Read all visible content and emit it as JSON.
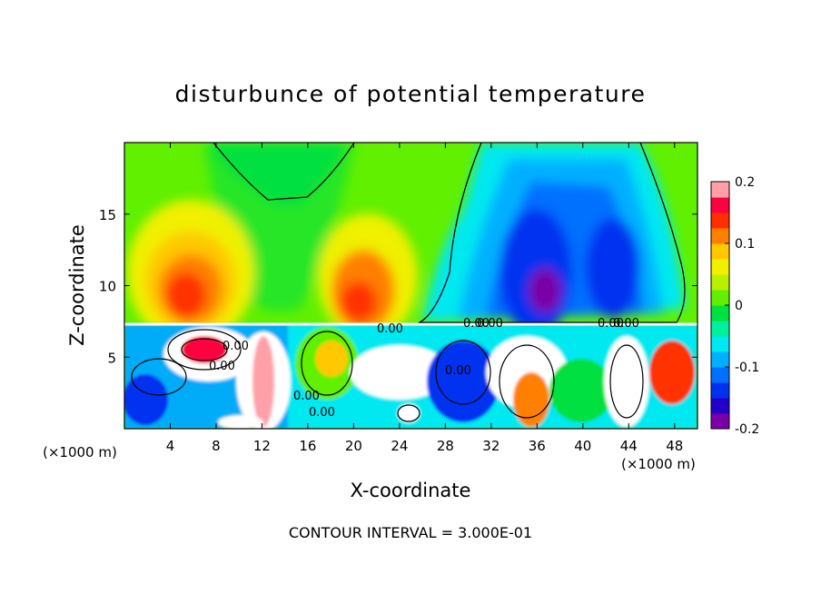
{
  "chart_data": {
    "type": "heatmap",
    "title": "disturbunce of potential temperature",
    "xlabel": "X-coordinate",
    "ylabel": "Z-coordinate",
    "x_unit_left": "(×1000 m)",
    "x_unit_right": "(×1000 m)",
    "xlim": [
      0,
      50
    ],
    "ylim": [
      0,
      20
    ],
    "xticks": [
      "4",
      "8",
      "12",
      "16",
      "20",
      "24",
      "28",
      "32",
      "36",
      "40",
      "44",
      "48"
    ],
    "yticks": [
      "5",
      "10",
      "15"
    ],
    "colorbar": {
      "range": [
        -0.2,
        0.2
      ],
      "ticks": [
        "0.2",
        "0.1",
        "0",
        "-0.1",
        "-0.2"
      ],
      "colors": [
        "#7a00a8",
        "#2200c8",
        "#0030f0",
        "#0070ff",
        "#00b0ff",
        "#00e8f0",
        "#00f0a0",
        "#00e040",
        "#60f000",
        "#b8f000",
        "#f0f000",
        "#ffc800",
        "#ff8000",
        "#ff3000",
        "#ff0040",
        "#ffa0a8"
      ]
    },
    "contour_labels": [
      "0.00",
      "0.00",
      "0.00",
      "0.00",
      "0.00",
      "0.00",
      "0.00",
      "0.00",
      "0.00",
      "0.00"
    ],
    "footer": "CONTOUR INTERVAL = 3.000E-01"
  }
}
